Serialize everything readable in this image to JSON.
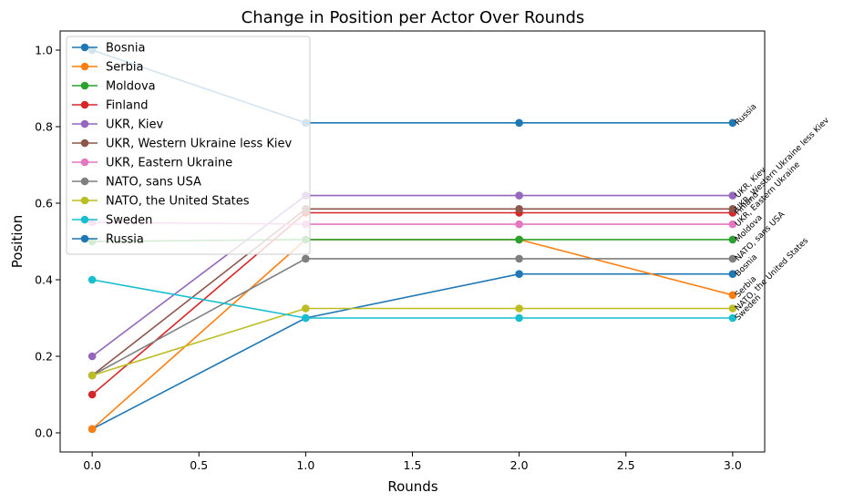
{
  "chart_data": {
    "type": "line",
    "title": "Change in Position per Actor Over Rounds",
    "xlabel": "Rounds",
    "ylabel": "Position",
    "xlim": [
      -0.15,
      3.15
    ],
    "ylim": [
      -0.05,
      1.05
    ],
    "xticks": [
      "0.0",
      "0.5",
      "1.0",
      "1.5",
      "2.0",
      "2.5",
      "3.0"
    ],
    "yticks": [
      "0.0",
      "0.2",
      "0.4",
      "0.6",
      "0.8",
      "1.0"
    ],
    "x": [
      0,
      1,
      2,
      3
    ],
    "legend_position": "upper-left",
    "grid": false,
    "series": [
      {
        "name": "Bosnia",
        "color": "#1f77b4",
        "values": [
          0.01,
          0.3,
          0.415,
          0.415
        ]
      },
      {
        "name": "Serbia",
        "color": "#ff7f0e",
        "values": [
          0.01,
          0.505,
          0.505,
          0.36
        ]
      },
      {
        "name": "Moldova",
        "color": "#2ca02c",
        "values": [
          0.5,
          0.505,
          0.505,
          0.505
        ]
      },
      {
        "name": "Finland",
        "color": "#d62728",
        "values": [
          0.1,
          0.575,
          0.575,
          0.575
        ]
      },
      {
        "name": "UKR, Kiev",
        "color": "#9467bd",
        "values": [
          0.2,
          0.62,
          0.62,
          0.62
        ]
      },
      {
        "name": "UKR, Western Ukraine less Kiev",
        "color": "#8c564b",
        "values": [
          0.15,
          0.585,
          0.585,
          0.585
        ]
      },
      {
        "name": "UKR, Eastern Ukraine",
        "color": "#e377c2",
        "values": [
          0.55,
          0.545,
          0.545,
          0.545
        ]
      },
      {
        "name": "NATO, sans USA",
        "color": "#7f7f7f",
        "values": [
          0.15,
          0.455,
          0.455,
          0.455
        ]
      },
      {
        "name": "NATO, the United States",
        "color": "#bcbd22",
        "values": [
          0.15,
          0.325,
          0.325,
          0.325
        ]
      },
      {
        "name": "Sweden",
        "color": "#17becf",
        "values": [
          0.4,
          0.3,
          0.3,
          0.3
        ]
      },
      {
        "name": "Russia",
        "color": "#1f77b4",
        "values": [
          1.0,
          0.81,
          0.81,
          0.81
        ]
      }
    ]
  }
}
